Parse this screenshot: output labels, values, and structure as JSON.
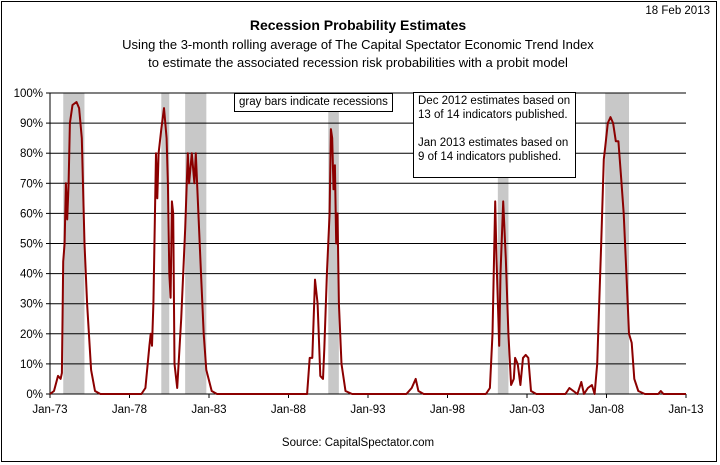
{
  "header": {
    "date_stamp": "18 Feb 2013",
    "title": "Recession Probability Estimates",
    "subtitle_line1": "Using the 3-month rolling average of The Capital Spectator Economic Trend Index",
    "subtitle_line2": "to estimate the associated recession risk probabilities with a probit model"
  },
  "footer": {
    "source": "Source:  CapitalSpectator.com"
  },
  "annotations": {
    "gray_note": "gray bars indicate recessions",
    "estimate_note": {
      "line1": "Dec 2012 estimates based on",
      "line2": "13 of 14 indicators published.",
      "line3": "Jan 2013 estimates based on",
      "line4": "9 of 14 indicators published."
    }
  },
  "colors": {
    "series": "#8B0000",
    "recession_band": "#C8C8C8",
    "gridline": "#000000"
  },
  "chart_data": {
    "type": "line",
    "title": "Recession Probability Estimates",
    "subtitle": "Using the 3-month rolling average of The Capital Spectator Economic Trend Index to estimate the associated recession risk probabilities with a probit model",
    "xlabel": "",
    "ylabel": "",
    "x_ticks": [
      "Jan-73",
      "Jan-78",
      "Jan-83",
      "Jan-88",
      "Jan-93",
      "Jan-98",
      "Jan-03",
      "Jan-08",
      "Jan-13"
    ],
    "y_ticks": [
      "0%",
      "10%",
      "20%",
      "30%",
      "40%",
      "50%",
      "60%",
      "70%",
      "80%",
      "90%",
      "100%"
    ],
    "xlim": [
      "1973-01",
      "2013-01"
    ],
    "ylim": [
      0,
      100
    ],
    "grid": "horizontal",
    "recessions": [
      {
        "start": "1973-11",
        "end": "1975-03"
      },
      {
        "start": "1980-01",
        "end": "1980-07"
      },
      {
        "start": "1981-07",
        "end": "1982-11"
      },
      {
        "start": "1990-07",
        "end": "1991-03"
      },
      {
        "start": "2001-03",
        "end": "2001-11"
      },
      {
        "start": "2007-12",
        "end": "2009-06"
      }
    ],
    "series": [
      {
        "values": [
          [
            "1973-01",
            0
          ],
          [
            "1973-04",
            1
          ],
          [
            "1973-07",
            6
          ],
          [
            "1973-09",
            5
          ],
          [
            "1973-10",
            7
          ],
          [
            "1973-11",
            44
          ],
          [
            "1973-12",
            50
          ],
          [
            "1974-01",
            70
          ],
          [
            "1974-02",
            58
          ],
          [
            "1974-03",
            70
          ],
          [
            "1974-04",
            90
          ],
          [
            "1974-06",
            96
          ],
          [
            "1974-09",
            97
          ],
          [
            "1974-11",
            95
          ],
          [
            "1975-01",
            85
          ],
          [
            "1975-03",
            50
          ],
          [
            "1975-05",
            30
          ],
          [
            "1975-08",
            8
          ],
          [
            "1975-11",
            1
          ],
          [
            "1976-03",
            0
          ],
          [
            "1978-10",
            0
          ],
          [
            "1979-01",
            2
          ],
          [
            "1979-04",
            16
          ],
          [
            "1979-05",
            20
          ],
          [
            "1979-06",
            16
          ],
          [
            "1979-07",
            30
          ],
          [
            "1979-09",
            80
          ],
          [
            "1979-10",
            65
          ],
          [
            "1979-11",
            80
          ],
          [
            "1980-01",
            88
          ],
          [
            "1980-03",
            95
          ],
          [
            "1980-05",
            85
          ],
          [
            "1980-06",
            70
          ],
          [
            "1980-07",
            40
          ],
          [
            "1980-08",
            32
          ],
          [
            "1980-09",
            64
          ],
          [
            "1980-10",
            60
          ],
          [
            "1980-11",
            10
          ],
          [
            "1981-01",
            2
          ],
          [
            "1981-04",
            25
          ],
          [
            "1981-07",
            55
          ],
          [
            "1981-09",
            80
          ],
          [
            "1981-10",
            70
          ],
          [
            "1981-12",
            80
          ],
          [
            "1982-02",
            70
          ],
          [
            "1982-03",
            80
          ],
          [
            "1982-05",
            60
          ],
          [
            "1982-07",
            40
          ],
          [
            "1982-09",
            20
          ],
          [
            "1982-11",
            8
          ],
          [
            "1983-03",
            1
          ],
          [
            "1983-07",
            0
          ],
          [
            "1989-03",
            0
          ],
          [
            "1989-05",
            12
          ],
          [
            "1989-07",
            12
          ],
          [
            "1989-09",
            38
          ],
          [
            "1989-11",
            30
          ],
          [
            "1990-01",
            6
          ],
          [
            "1990-03",
            5
          ],
          [
            "1990-04",
            15
          ],
          [
            "1990-06",
            40
          ],
          [
            "1990-08",
            60
          ],
          [
            "1990-09",
            88
          ],
          [
            "1990-10",
            85
          ],
          [
            "1990-11",
            68
          ],
          [
            "1990-12",
            76
          ],
          [
            "1991-01",
            50
          ],
          [
            "1991-02",
            60
          ],
          [
            "1991-03",
            30
          ],
          [
            "1991-05",
            10
          ],
          [
            "1991-08",
            1
          ],
          [
            "1992-01",
            0
          ],
          [
            "1995-06",
            0
          ],
          [
            "1995-10",
            2
          ],
          [
            "1996-01",
            5
          ],
          [
            "1996-03",
            1
          ],
          [
            "1996-07",
            0
          ],
          [
            "2000-06",
            0
          ],
          [
            "2000-09",
            2
          ],
          [
            "2000-11",
            20
          ],
          [
            "2001-01",
            64
          ],
          [
            "2001-02",
            45
          ],
          [
            "2001-04",
            16
          ],
          [
            "2001-05",
            40
          ],
          [
            "2001-07",
            64
          ],
          [
            "2001-09",
            45
          ],
          [
            "2001-11",
            20
          ],
          [
            "2002-01",
            3
          ],
          [
            "2002-03",
            5
          ],
          [
            "2002-04",
            12
          ],
          [
            "2002-06",
            10
          ],
          [
            "2002-08",
            3
          ],
          [
            "2002-10",
            12
          ],
          [
            "2002-12",
            13
          ],
          [
            "2003-02",
            12
          ],
          [
            "2003-04",
            1
          ],
          [
            "2003-08",
            0
          ],
          [
            "2005-06",
            0
          ],
          [
            "2005-09",
            2
          ],
          [
            "2005-12",
            1
          ],
          [
            "2006-03",
            0
          ],
          [
            "2006-06",
            4
          ],
          [
            "2006-08",
            0
          ],
          [
            "2006-11",
            2
          ],
          [
            "2007-02",
            3
          ],
          [
            "2007-04",
            0
          ],
          [
            "2007-06",
            10
          ],
          [
            "2007-09",
            50
          ],
          [
            "2007-11",
            78
          ],
          [
            "2007-12",
            82
          ],
          [
            "2008-02",
            90
          ],
          [
            "2008-04",
            92
          ],
          [
            "2008-06",
            90
          ],
          [
            "2008-08",
            84
          ],
          [
            "2008-10",
            84
          ],
          [
            "2008-12",
            72
          ],
          [
            "2009-02",
            60
          ],
          [
            "2009-04",
            40
          ],
          [
            "2009-06",
            20
          ],
          [
            "2009-08",
            17
          ],
          [
            "2009-10",
            5
          ],
          [
            "2010-01",
            1
          ],
          [
            "2010-06",
            0
          ],
          [
            "2011-04",
            0
          ],
          [
            "2011-06",
            1
          ],
          [
            "2011-08",
            0
          ],
          [
            "2013-01",
            0
          ]
        ]
      }
    ]
  }
}
